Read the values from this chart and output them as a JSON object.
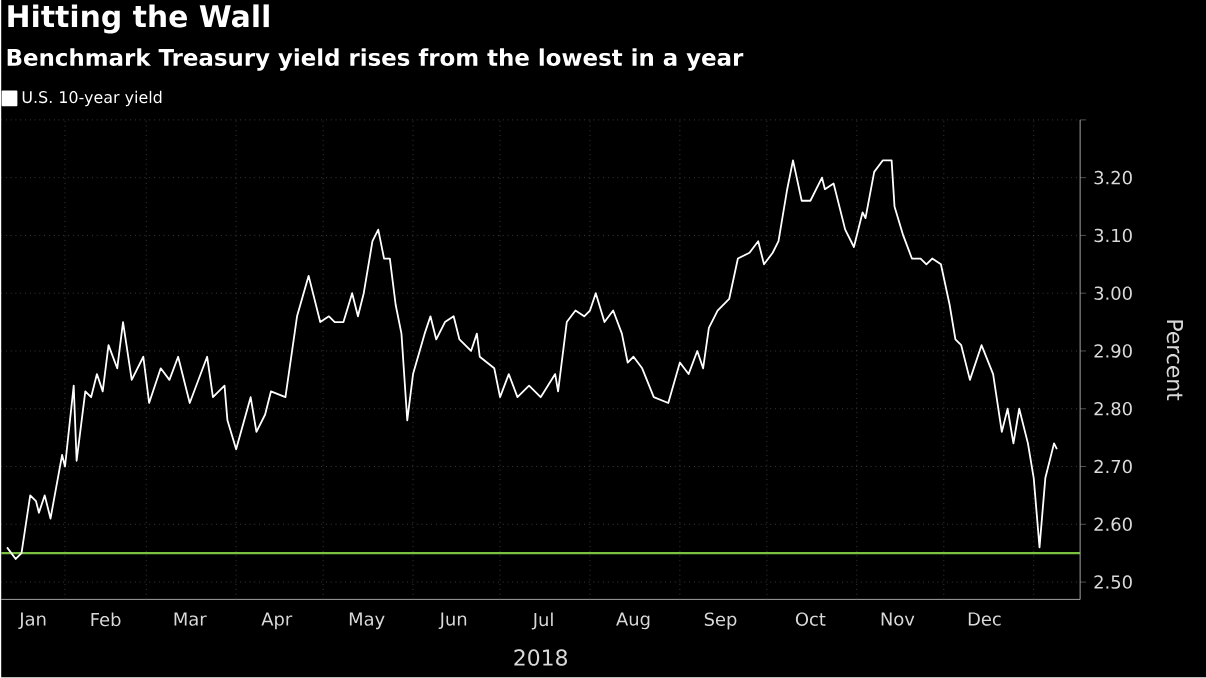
{
  "chart_data": {
    "type": "line",
    "title": "Hitting the Wall",
    "subtitle": "Benchmark Treasury yield rises from the lowest in a year",
    "xlabel": "2018",
    "ylabel": "Percent",
    "legend": "top left",
    "grid": true,
    "xlim": [
      "2018-01-10",
      "2019-01-17"
    ],
    "xticks": [
      {
        "value": "2018-01-21",
        "label": "Jan"
      },
      {
        "value": "2018-02-01",
        "label": null
      },
      {
        "value": "2018-02-15",
        "label": "Feb"
      },
      {
        "value": "2018-03-01",
        "label": null
      },
      {
        "value": "2018-03-16",
        "label": "Mar"
      },
      {
        "value": "2018-04-01",
        "label": null
      },
      {
        "value": "2018-04-15",
        "label": "Apr"
      },
      {
        "value": "2018-05-01",
        "label": null
      },
      {
        "value": "2018-05-16",
        "label": "May"
      },
      {
        "value": "2018-06-01",
        "label": null
      },
      {
        "value": "2018-06-15",
        "label": "Jun"
      },
      {
        "value": "2018-07-01",
        "label": null
      },
      {
        "value": "2018-07-16",
        "label": "Jul"
      },
      {
        "value": "2018-08-01",
        "label": null
      },
      {
        "value": "2018-08-16",
        "label": "Aug"
      },
      {
        "value": "2018-09-01",
        "label": null
      },
      {
        "value": "2018-09-15",
        "label": "Sep"
      },
      {
        "value": "2018-10-01",
        "label": null
      },
      {
        "value": "2018-10-16",
        "label": "Oct"
      },
      {
        "value": "2018-11-01",
        "label": null
      },
      {
        "value": "2018-11-15",
        "label": "Nov"
      },
      {
        "value": "2018-12-01",
        "label": null
      },
      {
        "value": "2018-12-15",
        "label": "Dec"
      },
      {
        "value": "2019-01-01",
        "label": null
      }
    ],
    "ylim": [
      2.47,
      3.3
    ],
    "yticks": [
      {
        "value": 2.5,
        "label": "2.50"
      },
      {
        "value": 2.6,
        "label": "2.60"
      },
      {
        "value": 2.7,
        "label": "2.70"
      },
      {
        "value": 2.8,
        "label": "2.80"
      },
      {
        "value": 2.9,
        "label": "2.90"
      },
      {
        "value": 3.0,
        "label": "3.00"
      },
      {
        "value": 3.1,
        "label": "3.10"
      },
      {
        "value": 3.2,
        "label": "3.20"
      },
      {
        "value": 3.3,
        "label": null
      }
    ],
    "ref_lines": [
      {
        "axis": "y",
        "value": 2.55,
        "color": "#7ac142"
      }
    ],
    "series": [
      {
        "name": "U.S. 10-year yield",
        "color": "#ffffff",
        "x": [
          "2018-01-12",
          "2018-01-15",
          "2018-01-17",
          "2018-01-20",
          "2018-01-22",
          "2018-01-23",
          "2018-01-25",
          "2018-01-27",
          "2018-01-31",
          "2018-02-01",
          "2018-02-04",
          "2018-02-05",
          "2018-02-08",
          "2018-02-10",
          "2018-02-12",
          "2018-02-14",
          "2018-02-16",
          "2018-02-19",
          "2018-02-21",
          "2018-02-24",
          "2018-02-28",
          "2018-03-02",
          "2018-03-06",
          "2018-03-09",
          "2018-03-12",
          "2018-03-16",
          "2018-03-22",
          "2018-03-24",
          "2018-03-28",
          "2018-03-29",
          "2018-04-01",
          "2018-04-06",
          "2018-04-08",
          "2018-04-11",
          "2018-04-13",
          "2018-04-18",
          "2018-04-22",
          "2018-04-26",
          "2018-04-30",
          "2018-05-03",
          "2018-05-05",
          "2018-05-08",
          "2018-05-11",
          "2018-05-13",
          "2018-05-15",
          "2018-05-18",
          "2018-05-20",
          "2018-05-22",
          "2018-05-24",
          "2018-05-26",
          "2018-05-28",
          "2018-05-30",
          "2018-06-01",
          "2018-06-05",
          "2018-06-07",
          "2018-06-09",
          "2018-06-12",
          "2018-06-15",
          "2018-06-17",
          "2018-06-21",
          "2018-06-23",
          "2018-06-24",
          "2018-06-29",
          "2018-07-01",
          "2018-07-04",
          "2018-07-07",
          "2018-07-11",
          "2018-07-15",
          "2018-07-20",
          "2018-07-21",
          "2018-07-24",
          "2018-07-27",
          "2018-07-30",
          "2018-08-01",
          "2018-08-03",
          "2018-08-06",
          "2018-08-09",
          "2018-08-12",
          "2018-08-14",
          "2018-08-16",
          "2018-08-19",
          "2018-08-23",
          "2018-08-28",
          "2018-09-01",
          "2018-09-04",
          "2018-09-07",
          "2018-09-09",
          "2018-09-11",
          "2018-09-14",
          "2018-09-18",
          "2018-09-21",
          "2018-09-25",
          "2018-09-28",
          "2018-09-30",
          "2018-10-03",
          "2018-10-05",
          "2018-10-08",
          "2018-10-10",
          "2018-10-13",
          "2018-10-16",
          "2018-10-20",
          "2018-10-21",
          "2018-10-24",
          "2018-10-28",
          "2018-10-31",
          "2018-11-03",
          "2018-11-04",
          "2018-11-07",
          "2018-11-10",
          "2018-11-13",
          "2018-11-14",
          "2018-11-17",
          "2018-11-20",
          "2018-11-23",
          "2018-11-25",
          "2018-11-27",
          "2018-11-30",
          "2018-12-03",
          "2018-12-05",
          "2018-12-07",
          "2018-12-10",
          "2018-12-14",
          "2018-12-18",
          "2018-12-21",
          "2018-12-23",
          "2018-12-25",
          "2018-12-27",
          "2018-12-30",
          "2019-01-01",
          "2019-01-03",
          "2019-01-05",
          "2019-01-08",
          "2019-01-09"
        ],
        "values": [
          2.56,
          2.54,
          2.55,
          2.65,
          2.64,
          2.62,
          2.65,
          2.61,
          2.72,
          2.7,
          2.84,
          2.71,
          2.83,
          2.82,
          2.86,
          2.83,
          2.91,
          2.87,
          2.95,
          2.85,
          2.89,
          2.81,
          2.87,
          2.85,
          2.89,
          2.81,
          2.89,
          2.82,
          2.84,
          2.78,
          2.73,
          2.82,
          2.76,
          2.79,
          2.83,
          2.82,
          2.96,
          3.03,
          2.95,
          2.96,
          2.95,
          2.95,
          3.0,
          2.96,
          3.0,
          3.09,
          3.11,
          3.06,
          3.06,
          2.98,
          2.93,
          2.78,
          2.86,
          2.93,
          2.96,
          2.92,
          2.95,
          2.96,
          2.92,
          2.9,
          2.93,
          2.89,
          2.87,
          2.82,
          2.86,
          2.82,
          2.84,
          2.82,
          2.86,
          2.83,
          2.95,
          2.97,
          2.96,
          2.97,
          3.0,
          2.95,
          2.97,
          2.93,
          2.88,
          2.89,
          2.87,
          2.82,
          2.81,
          2.88,
          2.86,
          2.9,
          2.87,
          2.94,
          2.97,
          2.99,
          3.06,
          3.07,
          3.09,
          3.05,
          3.07,
          3.09,
          3.18,
          3.23,
          3.16,
          3.16,
          3.2,
          3.18,
          3.19,
          3.11,
          3.08,
          3.14,
          3.13,
          3.21,
          3.23,
          3.23,
          3.15,
          3.1,
          3.06,
          3.06,
          3.05,
          3.06,
          3.05,
          2.98,
          2.92,
          2.91,
          2.85,
          2.91,
          2.86,
          2.76,
          2.8,
          2.74,
          2.8,
          2.74,
          2.68,
          2.56,
          2.68,
          2.74,
          2.73
        ]
      }
    ]
  }
}
